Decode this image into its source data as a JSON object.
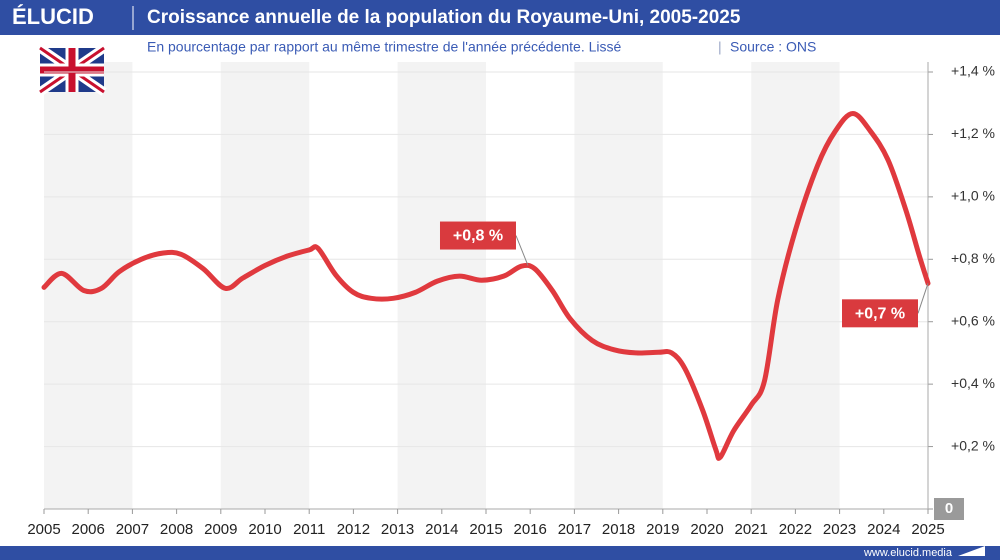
{
  "brand": "ÉLUCID",
  "website": "www.elucid.media",
  "chart_data": {
    "type": "line",
    "title": "Croissance annuelle de la population du Royaume-Uni, 2005-2025",
    "subtitle": "En pourcentage par rapport au même trimestre de l'année précédente. Lissé",
    "source": "Source : ONS",
    "x": [
      2005.0,
      2005.4,
      2005.9,
      2006.3,
      2006.7,
      2007.2,
      2007.7,
      2008.1,
      2008.6,
      2009.1,
      2009.5,
      2010.0,
      2010.5,
      2011.0,
      2011.2,
      2011.6,
      2012.0,
      2012.4,
      2012.9,
      2013.4,
      2013.9,
      2014.4,
      2014.9,
      2015.4,
      2015.8,
      2016.1,
      2016.5,
      2016.9,
      2017.4,
      2017.9,
      2018.4,
      2018.9,
      2019.2,
      2019.5,
      2019.9,
      2020.2,
      2020.3,
      2020.6,
      2021.0,
      2021.3,
      2021.6,
      2022.0,
      2022.5,
      2022.9,
      2023.3,
      2023.7,
      2024.1,
      2024.5,
      2024.8,
      2025.0
    ],
    "series": [
      {
        "name": "Royaume-Uni",
        "color": "#e0393e",
        "values": [
          0.71,
          0.755,
          0.7,
          0.707,
          0.76,
          0.8,
          0.82,
          0.816,
          0.77,
          0.707,
          0.74,
          0.78,
          0.81,
          0.83,
          0.835,
          0.75,
          0.694,
          0.675,
          0.675,
          0.694,
          0.73,
          0.746,
          0.733,
          0.746,
          0.778,
          0.77,
          0.7,
          0.61,
          0.54,
          0.51,
          0.5,
          0.502,
          0.5,
          0.45,
          0.317,
          0.19,
          0.166,
          0.25,
          0.333,
          0.41,
          0.67,
          0.893,
          1.1,
          1.21,
          1.267,
          1.21,
          1.117,
          0.957,
          0.813,
          0.723
        ]
      }
    ],
    "xlim": [
      2005,
      2025
    ],
    "xticks": [
      2005,
      2006,
      2007,
      2008,
      2009,
      2010,
      2011,
      2012,
      2013,
      2014,
      2015,
      2016,
      2017,
      2018,
      2019,
      2020,
      2021,
      2022,
      2023,
      2024,
      2025
    ],
    "ylim": [
      0,
      1.4
    ],
    "yticks": [
      0,
      {
        "value": 0.2,
        "label": "+0,2 %"
      },
      {
        "value": 0.4,
        "label": "+0,4 %"
      },
      {
        "value": 0.6,
        "label": "+0,6 %"
      },
      {
        "value": 0.8,
        "label": "+0,8 %"
      },
      {
        "value": 1.0,
        "label": "+1,0 %"
      },
      {
        "value": 1.2,
        "label": "+1,2 %"
      },
      {
        "value": 1.4,
        "label": "+1,4 %"
      }
    ],
    "grid": true,
    "annotations": [
      {
        "label": "+0,8 %",
        "x": 2015.95,
        "y": 0.78
      },
      {
        "label": "+0,7 %",
        "x": 2025.0,
        "y": 0.723
      }
    ]
  }
}
